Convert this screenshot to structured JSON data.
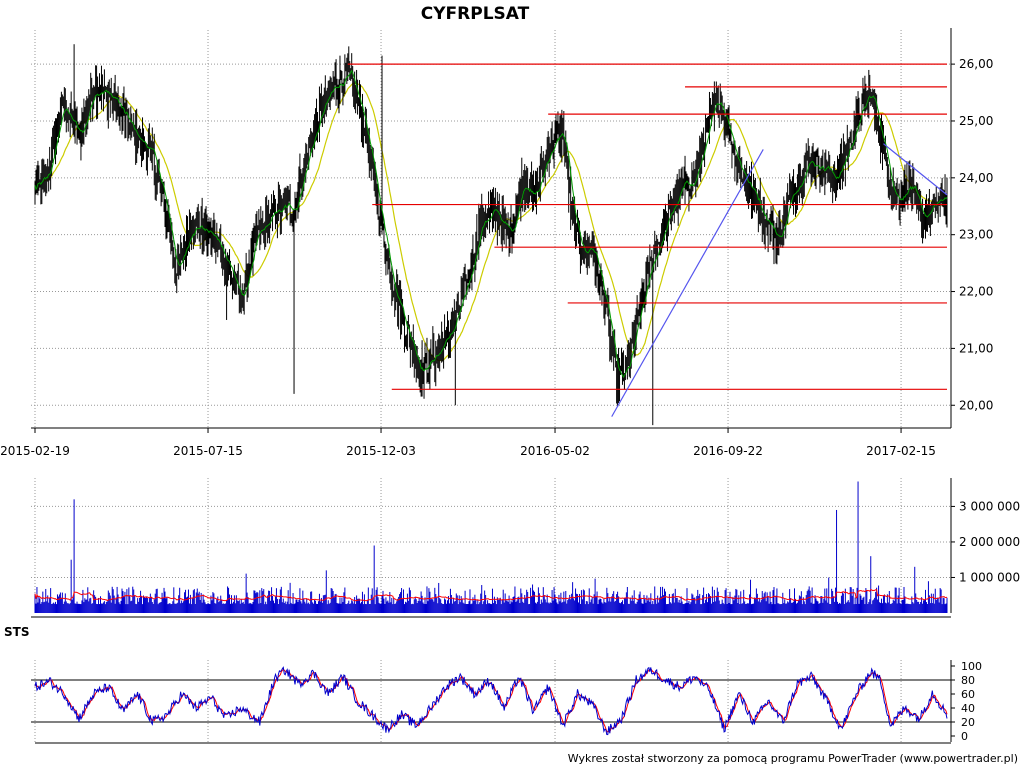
{
  "chart_data": [
    {
      "type": "candlestick",
      "title": "CYFRPLSAT",
      "x_tick_labels": [
        "2015-02-19",
        "2015-07-15",
        "2015-12-03",
        "2016-05-02",
        "2016-09-22",
        "2017-02-15"
      ],
      "y_tick_labels": [
        "20,00",
        "21,00",
        "22,00",
        "23,00",
        "24,00",
        "25,00",
        "26,00"
      ],
      "ylim": [
        19.6,
        26.6
      ],
      "grid": true,
      "close_anchor_path": [
        [
          0,
          23.8
        ],
        [
          12,
          24.0
        ],
        [
          28,
          25.3
        ],
        [
          45,
          24.7
        ],
        [
          60,
          25.6
        ],
        [
          80,
          25.4
        ],
        [
          100,
          24.8
        ],
        [
          120,
          24.4
        ],
        [
          135,
          23.3
        ],
        [
          145,
          22.3
        ],
        [
          160,
          23.2
        ],
        [
          180,
          23.0
        ],
        [
          195,
          22.6
        ],
        [
          210,
          21.8
        ],
        [
          225,
          22.9
        ],
        [
          245,
          23.4
        ],
        [
          265,
          23.5
        ],
        [
          280,
          24.5
        ],
        [
          295,
          25.3
        ],
        [
          310,
          25.7
        ],
        [
          320,
          25.8
        ],
        [
          335,
          25.1
        ],
        [
          350,
          23.6
        ],
        [
          365,
          22.2
        ],
        [
          380,
          21.3
        ],
        [
          395,
          20.6
        ],
        [
          410,
          20.9
        ],
        [
          425,
          21.3
        ],
        [
          440,
          22.0
        ],
        [
          455,
          23.2
        ],
        [
          470,
          23.4
        ],
        [
          485,
          23.0
        ],
        [
          500,
          24.0
        ],
        [
          510,
          23.6
        ],
        [
          525,
          24.5
        ],
        [
          540,
          24.8
        ],
        [
          550,
          23.2
        ],
        [
          560,
          22.7
        ],
        [
          570,
          22.8
        ],
        [
          585,
          21.6
        ],
        [
          595,
          20.4
        ],
        [
          605,
          20.6
        ],
        [
          615,
          21.4
        ],
        [
          630,
          22.5
        ],
        [
          645,
          23.2
        ],
        [
          660,
          23.8
        ],
        [
          675,
          24.0
        ],
        [
          690,
          25.0
        ],
        [
          700,
          25.4
        ],
        [
          710,
          24.8
        ],
        [
          720,
          24.2
        ],
        [
          735,
          23.7
        ],
        [
          750,
          23.2
        ],
        [
          760,
          22.9
        ],
        [
          775,
          23.8
        ],
        [
          790,
          24.3
        ],
        [
          805,
          24.2
        ],
        [
          820,
          24.0
        ],
        [
          835,
          24.7
        ],
        [
          845,
          25.2
        ],
        [
          855,
          25.5
        ],
        [
          868,
          24.5
        ],
        [
          880,
          23.6
        ],
        [
          895,
          23.9
        ],
        [
          905,
          23.3
        ],
        [
          920,
          23.5
        ],
        [
          933,
          23.7
        ]
      ],
      "red_levels": [
        {
          "value": 26.0,
          "from_bar": 320,
          "to_bar": 933
        },
        {
          "value": 25.6,
          "from_bar": 665,
          "to_bar": 933
        },
        {
          "value": 25.12,
          "from_bar": 525,
          "to_bar": 933
        },
        {
          "value": 23.53,
          "from_bar": 345,
          "to_bar": 933
        },
        {
          "value": 22.78,
          "from_bar": 470,
          "to_bar": 933
        },
        {
          "value": 21.8,
          "from_bar": 545,
          "to_bar": 933
        },
        {
          "value": 20.28,
          "from_bar": 365,
          "to_bar": 933
        }
      ],
      "blue_trendlines": [
        {
          "from": [
            590,
            19.8
          ],
          "to": [
            745,
            24.5
          ]
        },
        {
          "from": [
            868,
            24.6
          ],
          "to": [
            933,
            23.7
          ]
        }
      ],
      "colors": {
        "candles": "#000000",
        "moving_average_short": "#009900",
        "moving_average_long": "#cccc00",
        "levels": "#e60000",
        "trend": "#5555ee"
      }
    },
    {
      "type": "bar",
      "name": "volume",
      "y_tick_labels": [
        "1 000 000",
        "2 000 000",
        "3 000 000"
      ],
      "ylim": [
        0,
        3800000
      ],
      "spikes": [
        {
          "bar": 40,
          "value": 3200000
        },
        {
          "bar": 37,
          "value": 1500000
        },
        {
          "bar": 298,
          "value": 1200000
        },
        {
          "bar": 347,
          "value": 1900000
        },
        {
          "bar": 820,
          "value": 2900000
        },
        {
          "bar": 842,
          "value": 3700000
        },
        {
          "bar": 855,
          "value": 1600000
        },
        {
          "bar": 900,
          "value": 1300000
        }
      ],
      "colors": {
        "bars": "#0000cc",
        "average": "#ff0000"
      }
    },
    {
      "type": "line",
      "name": "STS",
      "title": "STS",
      "y_tick_labels": [
        "0",
        "20",
        "40",
        "60",
        "80",
        "100"
      ],
      "ylim": [
        0,
        100
      ],
      "reference_lines": [
        20,
        80
      ],
      "anchor_path": [
        [
          0,
          70
        ],
        [
          15,
          78
        ],
        [
          30,
          60
        ],
        [
          45,
          25
        ],
        [
          60,
          60
        ],
        [
          75,
          70
        ],
        [
          90,
          35
        ],
        [
          105,
          60
        ],
        [
          120,
          20
        ],
        [
          135,
          30
        ],
        [
          150,
          60
        ],
        [
          165,
          40
        ],
        [
          180,
          55
        ],
        [
          195,
          25
        ],
        [
          210,
          40
        ],
        [
          230,
          20
        ],
        [
          245,
          80
        ],
        [
          255,
          95
        ],
        [
          270,
          75
        ],
        [
          285,
          90
        ],
        [
          300,
          60
        ],
        [
          315,
          85
        ],
        [
          330,
          50
        ],
        [
          345,
          30
        ],
        [
          360,
          10
        ],
        [
          375,
          30
        ],
        [
          390,
          15
        ],
        [
          405,
          40
        ],
        [
          420,
          70
        ],
        [
          435,
          85
        ],
        [
          450,
          60
        ],
        [
          465,
          80
        ],
        [
          480,
          40
        ],
        [
          495,
          85
        ],
        [
          510,
          35
        ],
        [
          525,
          70
        ],
        [
          540,
          15
        ],
        [
          555,
          60
        ],
        [
          570,
          45
        ],
        [
          585,
          5
        ],
        [
          600,
          25
        ],
        [
          615,
          80
        ],
        [
          630,
          95
        ],
        [
          645,
          80
        ],
        [
          660,
          70
        ],
        [
          675,
          85
        ],
        [
          690,
          65
        ],
        [
          705,
          10
        ],
        [
          720,
          60
        ],
        [
          735,
          20
        ],
        [
          750,
          50
        ],
        [
          765,
          20
        ],
        [
          780,
          75
        ],
        [
          795,
          85
        ],
        [
          810,
          50
        ],
        [
          825,
          10
        ],
        [
          840,
          60
        ],
        [
          855,
          92
        ],
        [
          865,
          80
        ],
        [
          875,
          15
        ],
        [
          890,
          40
        ],
        [
          905,
          25
        ],
        [
          918,
          62
        ],
        [
          933,
          30
        ]
      ],
      "colors": {
        "fast": "#0000cc",
        "slow": "#ff0000",
        "reference": "#000000"
      }
    }
  ],
  "footer_text": "Wykres został stworzony za pomocą programu PowerTrader (www.powertrader.pl)"
}
